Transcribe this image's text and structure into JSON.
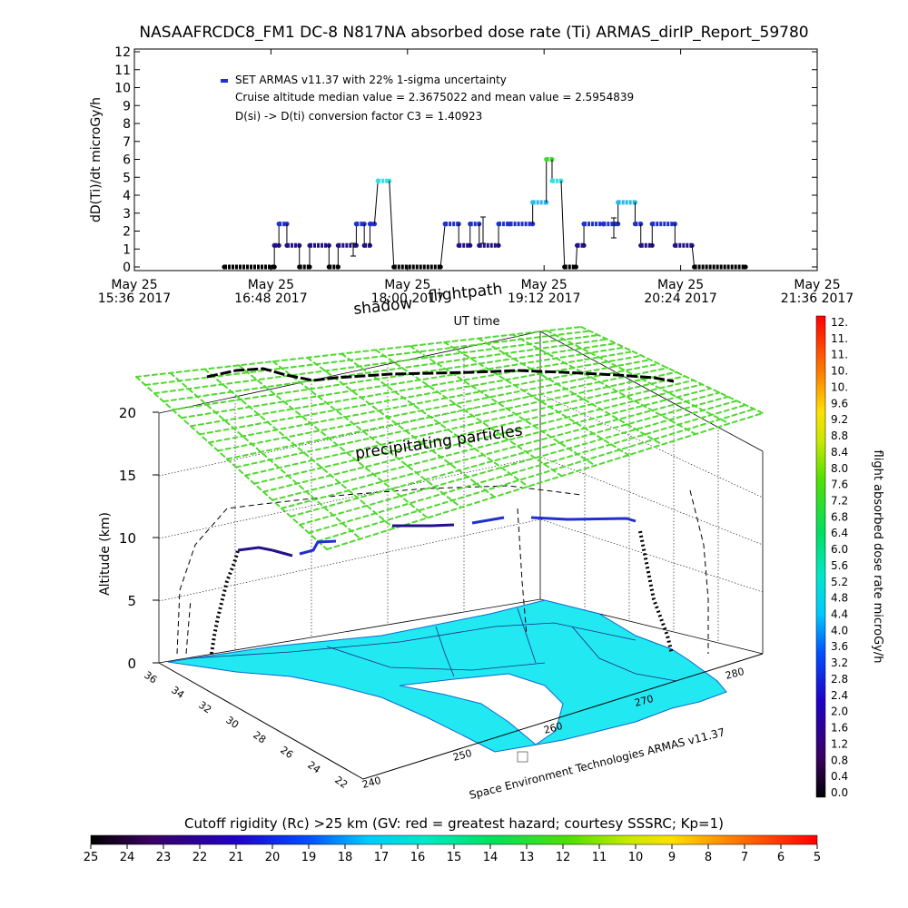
{
  "title": "NASAAFRCDC8_FM1  DC-8   N817NA absorbed dose rate (Ti) ARMAS_dirIP_Report_59780",
  "colors": {
    "point_blue": "#1f2fd0",
    "point_navy": "#24108a",
    "point_cyan": "#2db7ea",
    "point_aqua": "#36e0e8",
    "point_green": "#44d83a",
    "flat_black": "#000000",
    "map_fill": "#22e8f2",
    "mesh_green": "#4fd82e",
    "mesh_cyan": "#36e8b8"
  },
  "chart_data": [
    {
      "type": "scatter",
      "title": "NASAAFRCDC8_FM1  DC-8   N817NA absorbed dose rate (Ti) ARMAS_dirIP_Report_59780",
      "ylabel": "dD(Ti)/dt microGy/h",
      "xlabel": "UT time",
      "ylim": [
        0,
        12
      ],
      "yticks": [
        "0",
        "1",
        "2",
        "3",
        "4",
        "5",
        "6",
        "7",
        "8",
        "9",
        "10",
        "11",
        "12"
      ],
      "xlim_hours": [
        15.6,
        21.6
      ],
      "xticks": [
        {
          "hour": 15.6,
          "line1": "May 25",
          "line2": "15:36 2017"
        },
        {
          "hour": 16.8,
          "line1": "May 25",
          "line2": "16:48 2017"
        },
        {
          "hour": 18.0,
          "line1": "May 25",
          "line2": "18:00 2017"
        },
        {
          "hour": 19.2,
          "line1": "May 25",
          "line2": "19:12 2017"
        },
        {
          "hour": 20.4,
          "line1": "May 25",
          "line2": "20:24 2017"
        },
        {
          "hour": 21.6,
          "line1": "May 25",
          "line2": "21:36 2017"
        }
      ],
      "legend": [
        "SET ARMAS v11.37 with 22% 1-sigma uncertainty",
        "Cruise altitude median value = 2.3675022 and mean value = 2.5954839",
        "D(si) -> D(ti) conversion factor C3 = 1.40923"
      ],
      "series": [
        {
          "segments": [
            {
              "x0": 16.39,
              "x1": 16.83,
              "y": 0,
              "color": "flat_black"
            },
            {
              "x0": 16.83,
              "x1": 16.87,
              "y": 1.2,
              "color": "point_navy"
            },
            {
              "x0": 16.87,
              "x1": 16.94,
              "y": 2.4,
              "color": "point_blue"
            },
            {
              "x0": 16.94,
              "x1": 17.05,
              "y": 1.2,
              "color": "point_navy"
            },
            {
              "x0": 17.05,
              "x1": 17.14,
              "y": 0,
              "color": "flat_black"
            },
            {
              "x0": 17.14,
              "x1": 17.31,
              "y": 1.2,
              "color": "point_navy"
            },
            {
              "x0": 17.31,
              "x1": 17.39,
              "y": 0,
              "color": "flat_black"
            },
            {
              "x0": 17.39,
              "x1": 17.55,
              "y": 1.2,
              "color": "point_navy"
            },
            {
              "x0": 17.55,
              "x1": 17.62,
              "y": 2.4,
              "color": "point_blue"
            },
            {
              "x0": 17.62,
              "x1": 17.67,
              "y": 1.2,
              "color": "point_navy"
            },
            {
              "x0": 17.67,
              "x1": 17.71,
              "y": 2.4,
              "color": "point_blue"
            },
            {
              "x0": 17.74,
              "x1": 17.84,
              "y": 4.8,
              "color": "point_aqua"
            },
            {
              "x0": 17.88,
              "x1": 18.29,
              "y": 0,
              "color": "flat_black"
            },
            {
              "x0": 18.33,
              "x1": 18.45,
              "y": 2.4,
              "color": "point_blue"
            },
            {
              "x0": 18.45,
              "x1": 18.55,
              "y": 1.2,
              "color": "point_navy"
            },
            {
              "x0": 18.55,
              "x1": 18.63,
              "y": 2.4,
              "color": "point_blue"
            },
            {
              "x0": 18.63,
              "x1": 18.8,
              "y": 1.2,
              "color": "point_navy"
            },
            {
              "x0": 18.8,
              "x1": 18.9,
              "y": 2.4,
              "color": "point_blue"
            },
            {
              "x0": 18.9,
              "x1": 19.1,
              "y": 2.4,
              "color": "point_blue"
            },
            {
              "x0": 19.1,
              "x1": 19.22,
              "y": 3.6,
              "color": "point_cyan"
            },
            {
              "x0": 19.22,
              "x1": 19.27,
              "y": 6.0,
              "color": "point_green"
            },
            {
              "x0": 19.27,
              "x1": 19.35,
              "y": 4.8,
              "color": "point_aqua"
            },
            {
              "x0": 19.38,
              "x1": 19.48,
              "y": 0,
              "color": "flat_black"
            },
            {
              "x0": 19.49,
              "x1": 19.55,
              "y": 1.2,
              "color": "point_navy"
            },
            {
              "x0": 19.55,
              "x1": 19.72,
              "y": 2.4,
              "color": "point_blue"
            },
            {
              "x0": 19.72,
              "x1": 19.85,
              "y": 2.4,
              "color": "point_blue"
            },
            {
              "x0": 19.85,
              "x1": 20.0,
              "y": 3.6,
              "color": "point_cyan"
            },
            {
              "x0": 20.0,
              "x1": 20.05,
              "y": 2.4,
              "color": "point_blue"
            },
            {
              "x0": 20.05,
              "x1": 20.15,
              "y": 1.2,
              "color": "point_navy"
            },
            {
              "x0": 20.15,
              "x1": 20.35,
              "y": 2.4,
              "color": "point_blue"
            },
            {
              "x0": 20.35,
              "x1": 20.5,
              "y": 1.2,
              "color": "point_navy"
            },
            {
              "x0": 20.52,
              "x1": 20.97,
              "y": 0,
              "color": "flat_black"
            }
          ]
        }
      ]
    },
    {
      "type": "scatter",
      "zlabel": "Altitude (km)",
      "zticks": [
        "0",
        "5",
        "10",
        "15",
        "20"
      ],
      "lat_ticks": [
        "36",
        "34",
        "32",
        "30",
        "28",
        "26",
        "24",
        "22"
      ],
      "lon_ticks": [
        "240",
        "250",
        "260",
        "270",
        "280"
      ],
      "annotations": [
        "shadow",
        "flightpath",
        "precipitating particles"
      ],
      "footer": "Space Environment Technologies ARMAS v11.37"
    }
  ],
  "colorbar_right": {
    "label": "flight absorbed dose rate microGy/h",
    "labels": [
      "12.",
      "11.",
      "11.",
      "10.",
      "10.",
      "9.6",
      "9.2",
      "8.8",
      "8.4",
      "8.0",
      "7.6",
      "7.2",
      "6.8",
      "6.4",
      "6.0",
      "5.6",
      "5.2",
      "4.8",
      "4.4",
      "4.0",
      "3.6",
      "3.2",
      "2.8",
      "2.4",
      "2.0",
      "1.6",
      "1.2",
      "0.8",
      "0.4",
      "0.0"
    ]
  },
  "colorbar_bottom": {
    "title": "Cutoff rigidity (Rc) >25 km (GV: red = greatest hazard; courtesy SSSRC; Kp=1)",
    "labels": [
      "25",
      "24",
      "23",
      "22",
      "21",
      "20",
      "19",
      "18",
      "17",
      "16",
      "15",
      "14",
      "13",
      "12",
      "11",
      "10",
      "9",
      "8",
      "7",
      "6",
      "5"
    ]
  }
}
